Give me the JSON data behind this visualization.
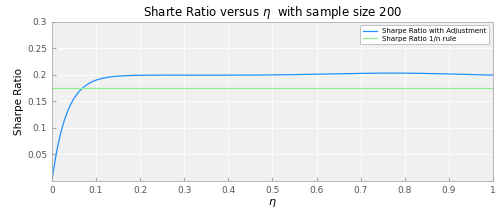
{
  "title": "Sharte Ratio versus $\\eta$  with sample size 200",
  "xlabel": "$\\eta$",
  "ylabel": "Sharpe Ratio",
  "xlim": [
    0,
    1.0
  ],
  "ylim": [
    0,
    0.3
  ],
  "yticks": [
    0.05,
    0.1,
    0.15,
    0.2,
    0.25,
    0.3
  ],
  "xticks": [
    0,
    0.1,
    0.2,
    0.3,
    0.4,
    0.5,
    0.6,
    0.7,
    0.8,
    0.9,
    1.0
  ],
  "hline_value": 0.175,
  "hline_color": "#90EE90",
  "curve_color": "#1e90ff",
  "plot_bg_color": "#f0f0f0",
  "fig_bg_color": "#ffffff",
  "legend_curve": "Sharpe Ratio with Adjustment",
  "legend_hline": "Sharpe Ratio 1/n rule",
  "grid_color": "#ffffff",
  "spine_color": "#aaaaaa",
  "tick_color": "#555555"
}
